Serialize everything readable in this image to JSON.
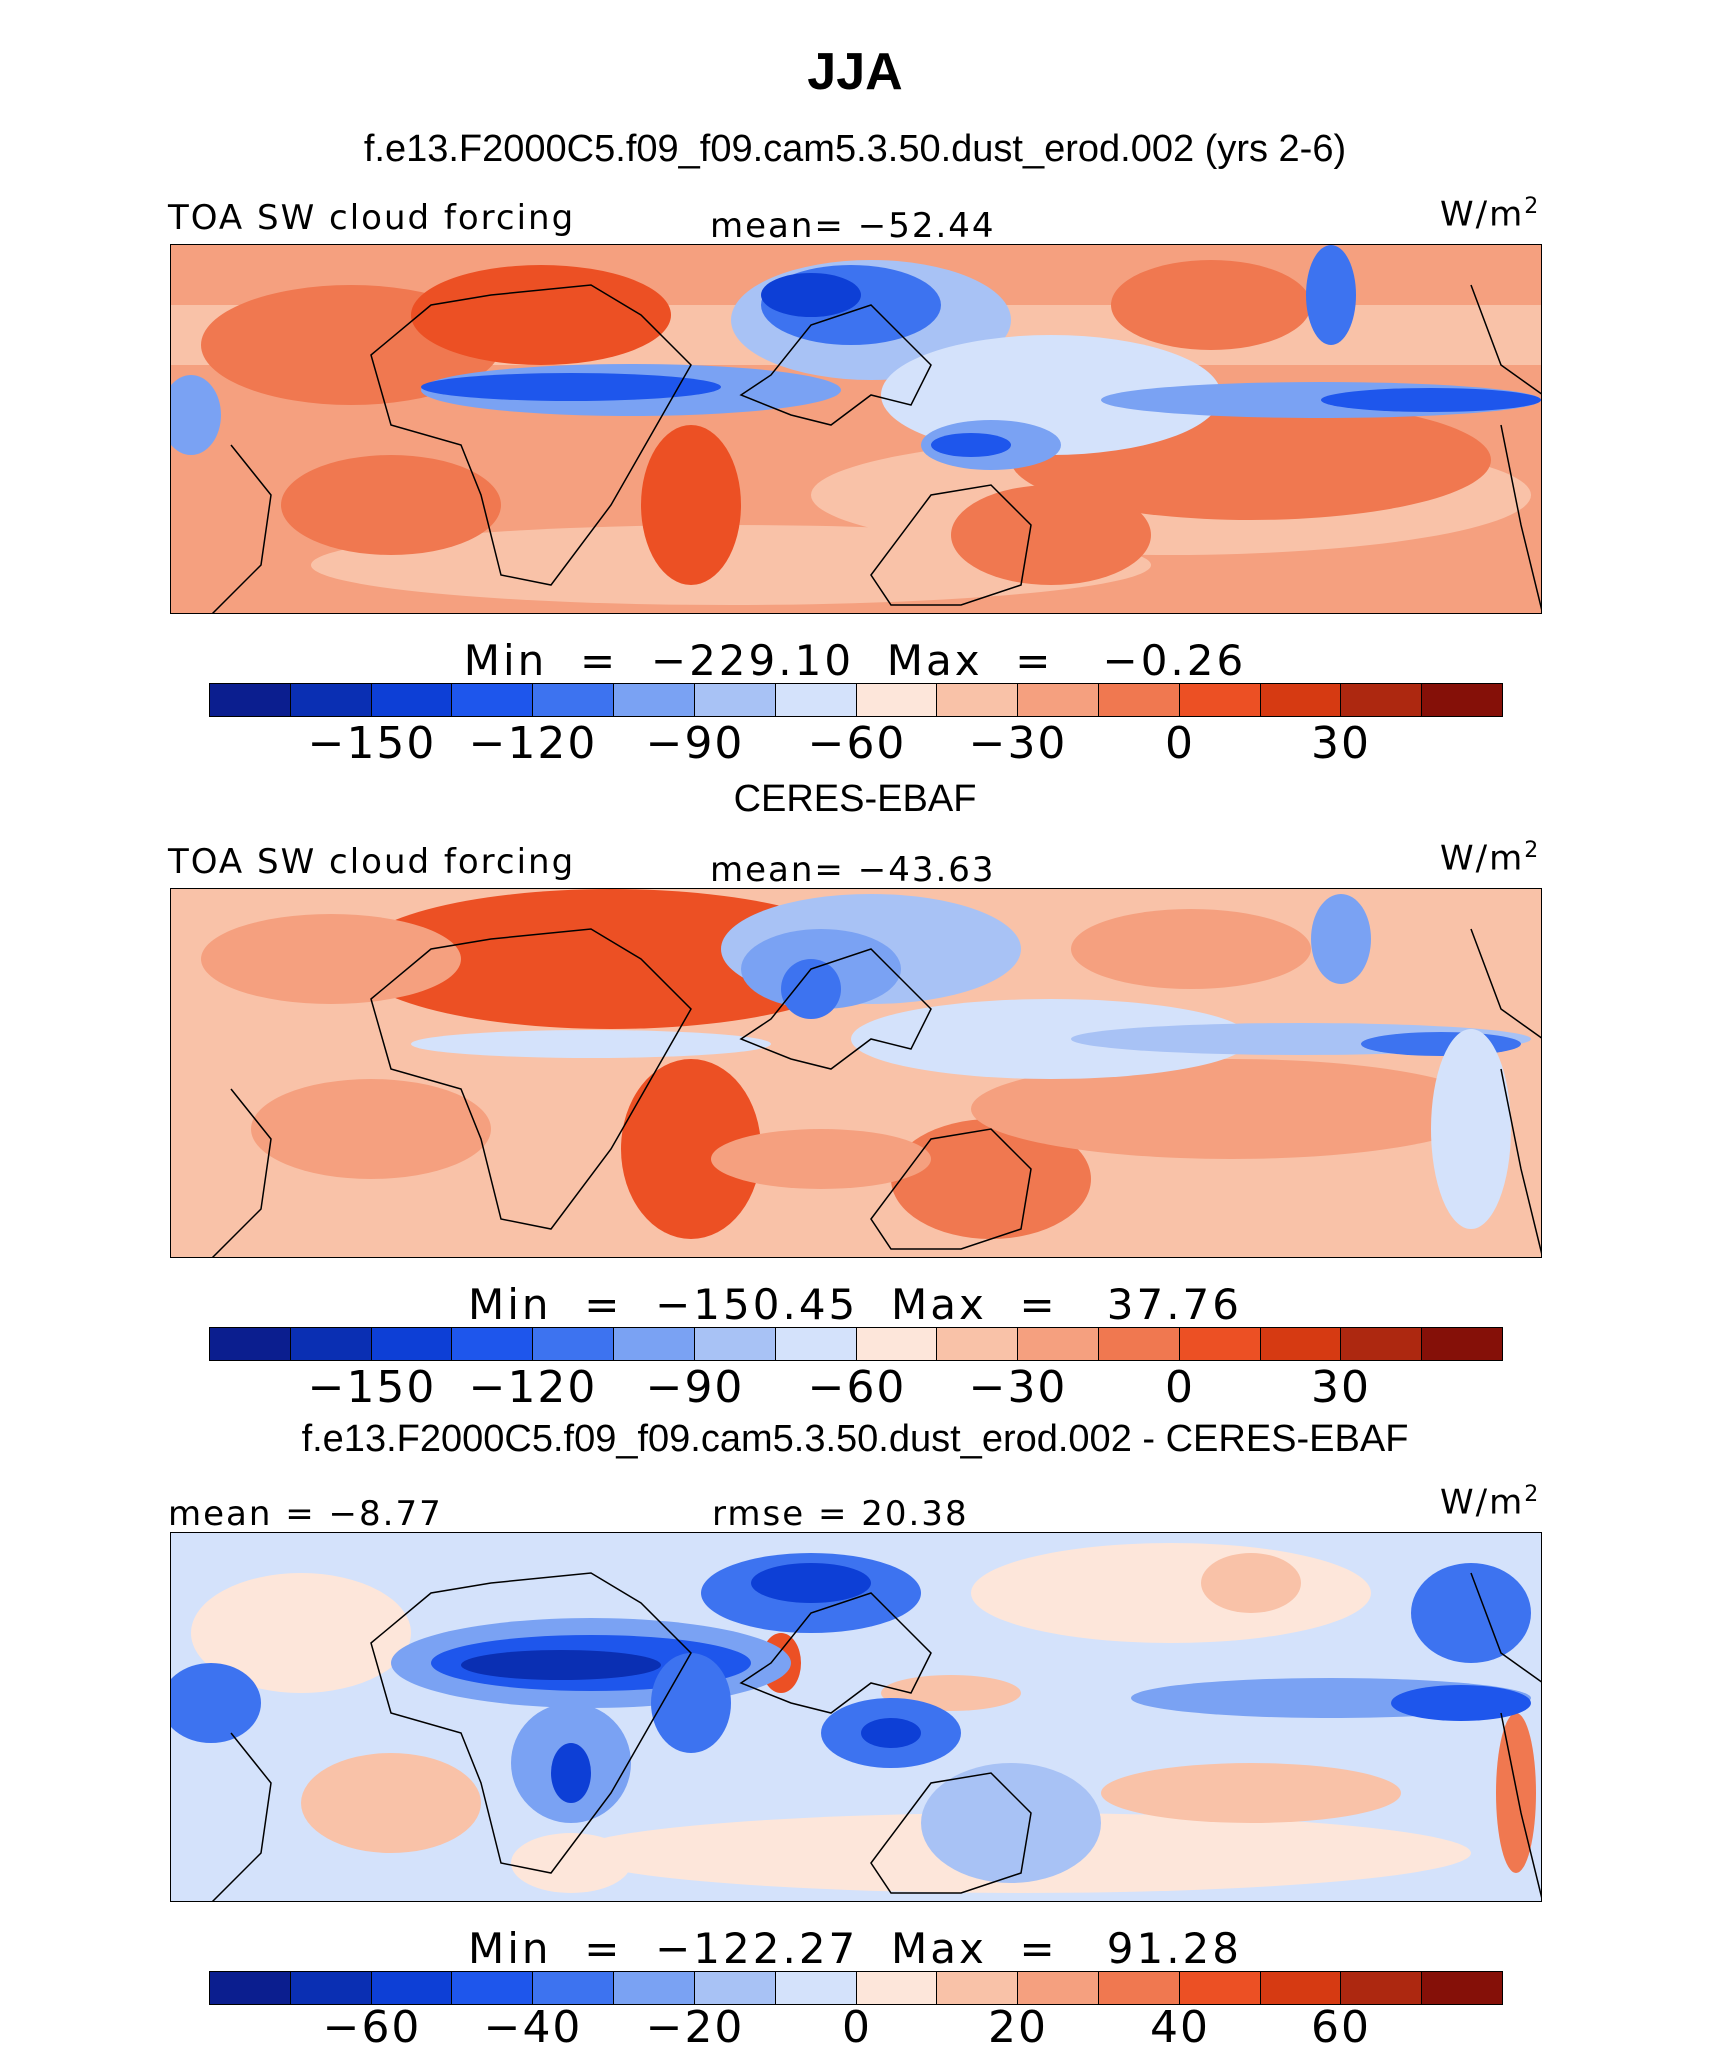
{
  "title": "JJA",
  "colors": [
    "#0b1e8f",
    "#0a2fb3",
    "#0d3fd6",
    "#1e56ec",
    "#3d73f0",
    "#7aa2f3",
    "#a8c2f5",
    "#d4e2fb",
    "#fde6da",
    "#f9c2a8",
    "#f5a07f",
    "#f07850",
    "#ec5024",
    "#d63a12",
    "#ad2810",
    "#851008"
  ],
  "panels": [
    {
      "subtitle": "f.e13.F2000C5.f09_f09.cam5.3.50.dust_erod.002 (yrs 2-6)",
      "left_label": "TOA SW cloud forcing",
      "center_label": "mean= −52.44",
      "units": "W/m",
      "units_sup": "2",
      "minmax": "Min  =  −229.10  Max  =   −0.26",
      "ticks": [
        "−150",
        "−120",
        "−90",
        "−60",
        "−30",
        "0",
        "30"
      ],
      "map_style": "model"
    },
    {
      "subtitle": "CERES-EBAF",
      "left_label": "TOA SW cloud forcing",
      "center_label": "mean= −43.63",
      "units": "W/m",
      "units_sup": "2",
      "minmax": "Min  =  −150.45  Max  =   37.76",
      "ticks": [
        "−150",
        "−120",
        "−90",
        "−60",
        "−30",
        "0",
        "30"
      ],
      "map_style": "obs"
    },
    {
      "subtitle": "f.e13.F2000C5.f09_f09.cam5.3.50.dust_erod.002 - CERES-EBAF",
      "left_label": "mean =   −8.77",
      "center_label": "rmse =   20.38",
      "units": "W/m",
      "units_sup": "2",
      "minmax": "Min  =  −122.27  Max  =   91.28",
      "ticks": [
        "−60",
        "−40",
        "−20",
        "0",
        "20",
        "40",
        "60"
      ],
      "map_style": "diff"
    }
  ]
}
